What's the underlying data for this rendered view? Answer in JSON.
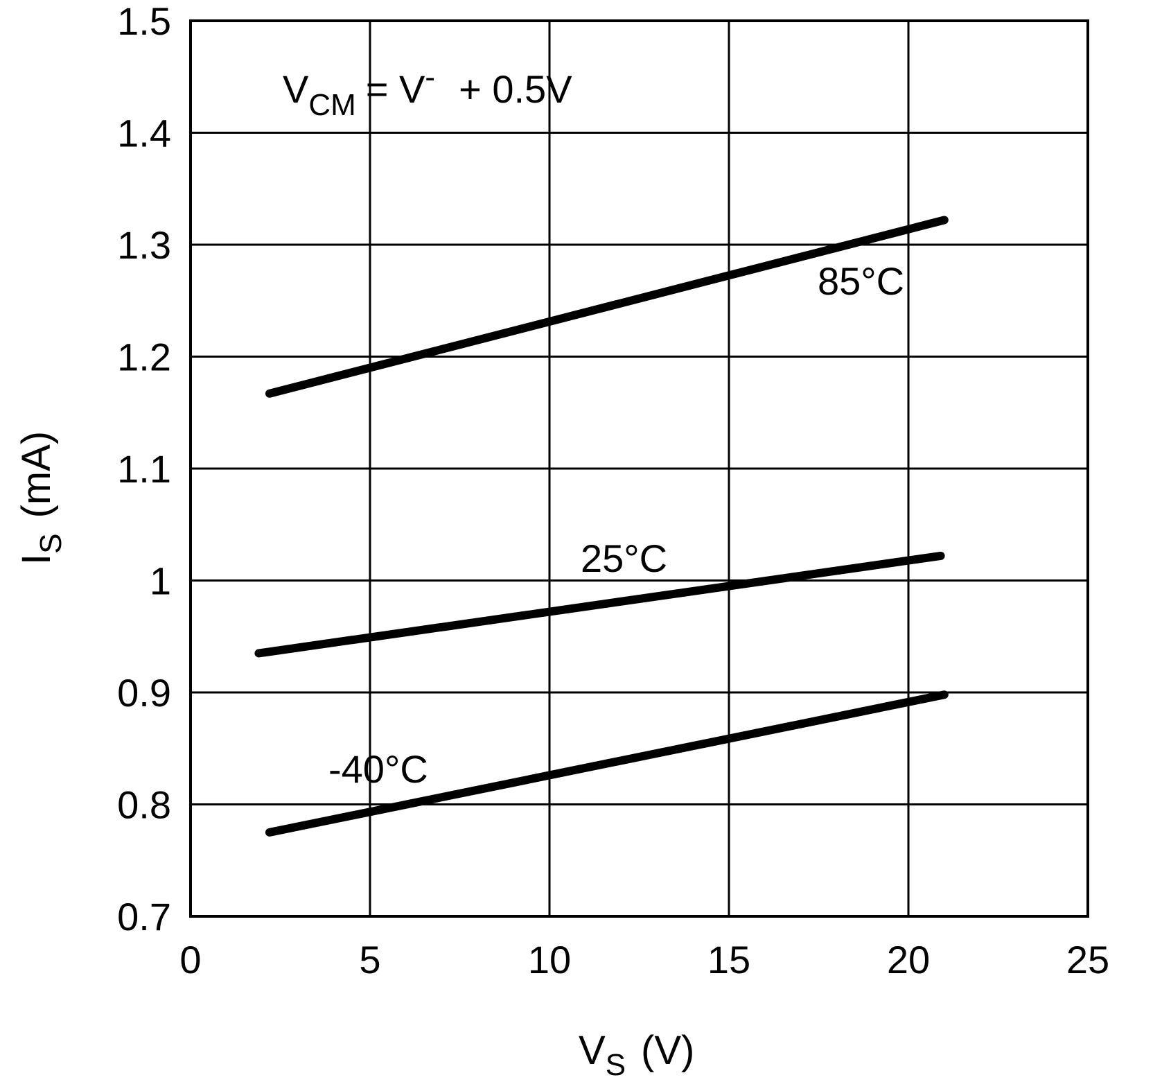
{
  "chart_data": {
    "type": "line",
    "title": "",
    "xlabel": {
      "main": "V",
      "sub": "S",
      "unit": "(V)"
    },
    "ylabel": {
      "main": "I",
      "sub": "S",
      "unit": "(mA)"
    },
    "xlim": [
      0,
      25
    ],
    "ylim": [
      0.7,
      1.5
    ],
    "x_ticks": [
      "0",
      "5",
      "10",
      "15",
      "20",
      "25"
    ],
    "y_ticks": [
      "0.7",
      "0.8",
      "0.9",
      "1",
      "1.1",
      "1.2",
      "1.3",
      "1.4",
      "1.5"
    ],
    "grid": true,
    "condition": {
      "v": "V",
      "sub": "CM",
      "eq": "= V",
      "sup": "-",
      "rest": "+  0.5V"
    },
    "series": [
      {
        "name": "85°C",
        "x": [
          2.2,
          21.0
        ],
        "y": [
          1.167,
          1.322
        ]
      },
      {
        "name": "25°C",
        "x": [
          1.9,
          20.9
        ],
        "y": [
          0.935,
          1.022
        ]
      },
      {
        "name": "-40°C",
        "x": [
          2.2,
          21.0
        ],
        "y": [
          0.775,
          0.898
        ]
      }
    ]
  },
  "colors": {
    "line": "#000000",
    "grid": "#000000",
    "background": "#ffffff"
  }
}
